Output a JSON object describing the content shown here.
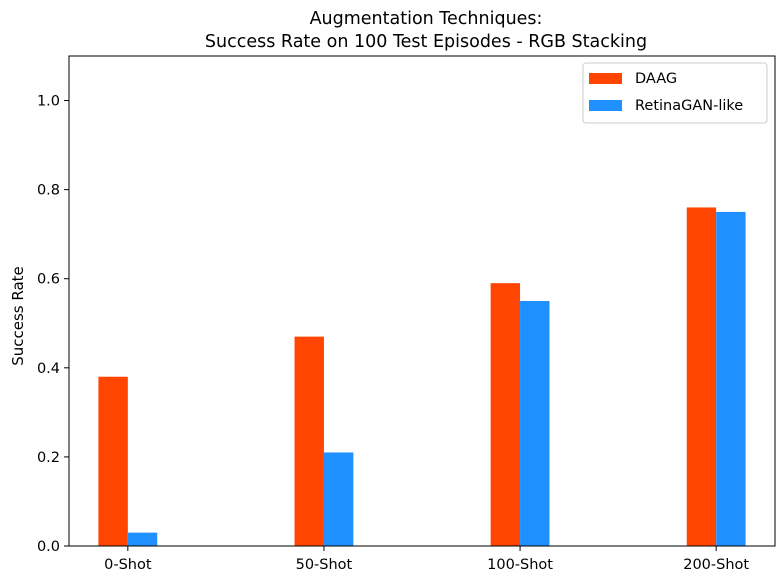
{
  "chart_data": {
    "type": "bar",
    "title_lines": [
      "Augmentation Techniques:",
      "Success Rate on 100 Test Episodes - RGB Stacking"
    ],
    "xlabel": "",
    "ylabel": "Success Rate",
    "categories": [
      "0-Shot",
      "50-Shot",
      "100-Shot",
      "200-Shot"
    ],
    "series": [
      {
        "name": "DAAG",
        "values": [
          0.38,
          0.47,
          0.59,
          0.76
        ],
        "color": "#FF4500"
      },
      {
        "name": "RetinaGAN-like",
        "values": [
          0.03,
          0.21,
          0.55,
          0.75
        ],
        "color": "#1E90FF"
      }
    ],
    "ylim": [
      0,
      1.1
    ],
    "yticks": [
      0.0,
      0.2,
      0.4,
      0.6,
      0.8,
      1.0
    ],
    "ytick_labels": [
      "0.0",
      "0.2",
      "0.4",
      "0.6",
      "0.8",
      "1.0"
    ],
    "grid": false,
    "legend_position": "top-right"
  }
}
